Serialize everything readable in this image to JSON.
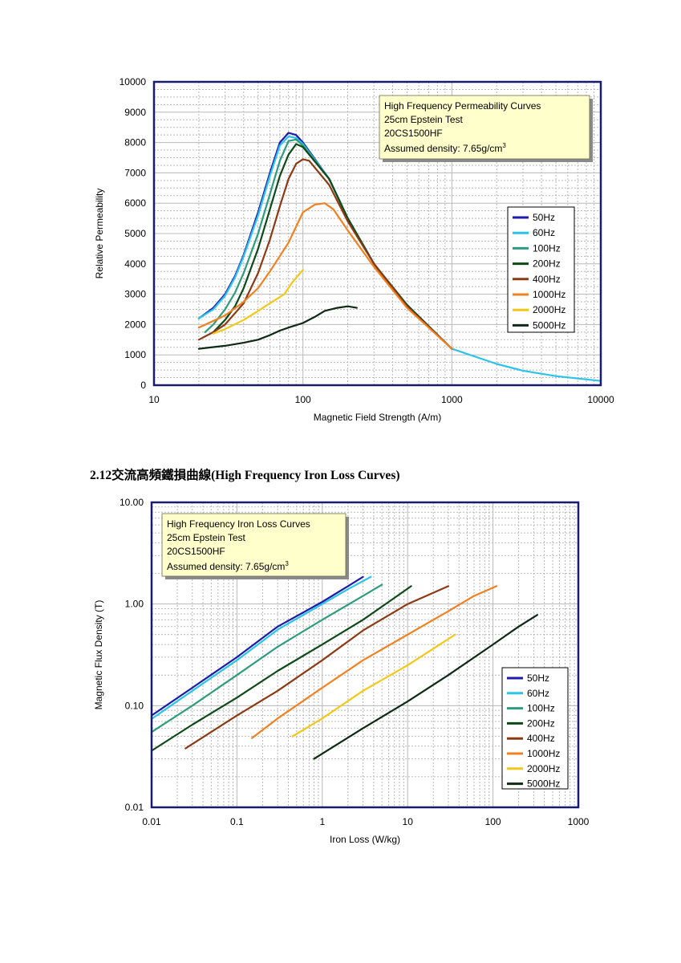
{
  "section_heading": "2.12交流高頻鐵損曲線(High Frequency Iron Loss Curves)",
  "colors": {
    "50Hz": "#1c1ca8",
    "60Hz": "#2ac4ea",
    "100Hz": "#2e9c7c",
    "200Hz": "#0e4a18",
    "400Hz": "#8c3a14",
    "1000Hz": "#f08020",
    "2000Hz": "#f2c818",
    "5000Hz": "#0e2a14",
    "frame": "#1a1a6e",
    "info_box": "#ffffcc",
    "grid": "#b8b8b8"
  },
  "chart_data": [
    {
      "type": "line",
      "xscale": "log",
      "xlim": [
        10,
        10000
      ],
      "ylim": [
        0,
        10000
      ],
      "xlabel": "Magnetic Field Strength (A/m)",
      "ylabel": "Relative Permeability",
      "x_ticks": [
        "10",
        "100",
        "1000",
        "10000"
      ],
      "y_ticks": [
        "0",
        "1000",
        "2000",
        "3000",
        "4000",
        "5000",
        "6000",
        "7000",
        "8000",
        "9000",
        "10000"
      ],
      "grid": true,
      "legend_position": "right",
      "info_box": {
        "line1": "High Frequency Permeability Curves",
        "line2": "25cm Epstein Test",
        "line3": "20CS1500HF",
        "line4": "Assumed density: 7.65g/cm",
        "line4_sup": "3"
      },
      "series": [
        {
          "name": "50Hz",
          "points": [
            [
              20,
              2200
            ],
            [
              25,
              2550
            ],
            [
              30,
              3000
            ],
            [
              35,
              3600
            ],
            [
              40,
              4300
            ],
            [
              50,
              5700
            ],
            [
              60,
              7000
            ],
            [
              70,
              8000
            ],
            [
              80,
              8320
            ],
            [
              90,
              8250
            ],
            [
              100,
              8000
            ],
            [
              150,
              6800
            ],
            [
              200,
              5500
            ],
            [
              300,
              4000
            ],
            [
              500,
              2600
            ],
            [
              1000,
              1200
            ]
          ]
        },
        {
          "name": "60Hz",
          "points": [
            [
              20,
              2200
            ],
            [
              25,
              2500
            ],
            [
              30,
              2950
            ],
            [
              35,
              3550
            ],
            [
              40,
              4250
            ],
            [
              50,
              5600
            ],
            [
              60,
              6900
            ],
            [
              70,
              7900
            ],
            [
              80,
              8200
            ],
            [
              90,
              8150
            ],
            [
              100,
              7950
            ],
            [
              150,
              6800
            ],
            [
              200,
              5500
            ],
            [
              300,
              4000
            ],
            [
              500,
              2600
            ],
            [
              1000,
              1200
            ],
            [
              2000,
              700
            ],
            [
              3000,
              480
            ],
            [
              5000,
              300
            ],
            [
              10000,
              140
            ]
          ]
        },
        {
          "name": "100Hz",
          "points": [
            [
              22,
              1750
            ],
            [
              25,
              2000
            ],
            [
              30,
              2500
            ],
            [
              35,
              3050
            ],
            [
              40,
              3700
            ],
            [
              50,
              5000
            ],
            [
              60,
              6300
            ],
            [
              70,
              7400
            ],
            [
              80,
              8050
            ],
            [
              90,
              8100
            ],
            [
              100,
              7900
            ],
            [
              150,
              6800
            ],
            [
              200,
              5500
            ],
            [
              300,
              4000
            ],
            [
              500,
              2600
            ],
            [
              1000,
              1200
            ]
          ]
        },
        {
          "name": "200Hz",
          "points": [
            [
              25,
              1750
            ],
            [
              30,
              2150
            ],
            [
              35,
              2600
            ],
            [
              40,
              3200
            ],
            [
              50,
              4500
            ],
            [
              60,
              5800
            ],
            [
              70,
              6900
            ],
            [
              80,
              7600
            ],
            [
              90,
              7950
            ],
            [
              100,
              7850
            ],
            [
              150,
              6800
            ],
            [
              200,
              5500
            ],
            [
              300,
              4000
            ],
            [
              500,
              2650
            ],
            [
              1000,
              1200
            ]
          ]
        },
        {
          "name": "400Hz",
          "points": [
            [
              20,
              1500
            ],
            [
              25,
              1750
            ],
            [
              30,
              2000
            ],
            [
              40,
              2700
            ],
            [
              50,
              3700
            ],
            [
              60,
              4800
            ],
            [
              70,
              5900
            ],
            [
              80,
              6800
            ],
            [
              90,
              7300
            ],
            [
              100,
              7450
            ],
            [
              110,
              7400
            ],
            [
              150,
              6600
            ],
            [
              200,
              5400
            ],
            [
              300,
              4000
            ],
            [
              500,
              2600
            ],
            [
              1000,
              1200
            ]
          ]
        },
        {
          "name": "1000Hz",
          "points": [
            [
              20,
              1900
            ],
            [
              30,
              2300
            ],
            [
              40,
              2750
            ],
            [
              50,
              3200
            ],
            [
              60,
              3750
            ],
            [
              80,
              4700
            ],
            [
              100,
              5700
            ],
            [
              120,
              5950
            ],
            [
              140,
              6000
            ],
            [
              160,
              5800
            ],
            [
              200,
              5100
            ],
            [
              300,
              3900
            ],
            [
              500,
              2550
            ],
            [
              1000,
              1200
            ]
          ]
        },
        {
          "name": "2000Hz",
          "points": [
            [
              25,
              1700
            ],
            [
              30,
              1850
            ],
            [
              40,
              2150
            ],
            [
              50,
              2450
            ],
            [
              60,
              2700
            ],
            [
              75,
              3000
            ],
            [
              85,
              3400
            ],
            [
              100,
              3800
            ]
          ]
        },
        {
          "name": "5000Hz",
          "points": [
            [
              20,
              1200
            ],
            [
              30,
              1300
            ],
            [
              40,
              1400
            ],
            [
              50,
              1500
            ],
            [
              60,
              1650
            ],
            [
              70,
              1800
            ],
            [
              80,
              1900
            ],
            [
              100,
              2050
            ],
            [
              120,
              2250
            ],
            [
              140,
              2450
            ],
            [
              170,
              2550
            ],
            [
              200,
              2600
            ],
            [
              230,
              2550
            ]
          ]
        }
      ]
    },
    {
      "type": "line",
      "xscale": "log",
      "yscale": "log",
      "xlim": [
        0.01,
        1000
      ],
      "ylim": [
        0.01,
        10
      ],
      "xlabel": "Iron Loss (W/kg)",
      "ylabel": "Magnetic Flux Density (T)",
      "x_ticks": [
        "0.01",
        "0.1",
        "1",
        "10",
        "100",
        "1000"
      ],
      "y_ticks": [
        "0.01",
        "0.10",
        "1.00",
        "10.00"
      ],
      "grid": true,
      "legend_position": "bottom-right",
      "info_box": {
        "line1": "High Frequency Iron Loss Curves",
        "line2": "25cm Epstein Test",
        "line3": "20CS1500HF",
        "line4": "Assumed density: 7.65g/cm",
        "line4_sup": "3"
      },
      "series": [
        {
          "name": "50Hz",
          "points": [
            [
              0.01,
              0.08
            ],
            [
              0.03,
              0.15
            ],
            [
              0.1,
              0.3
            ],
            [
              0.3,
              0.6
            ],
            [
              1,
              1.05
            ],
            [
              2,
              1.5
            ],
            [
              3,
              1.85
            ]
          ]
        },
        {
          "name": "60Hz",
          "points": [
            [
              0.01,
              0.074
            ],
            [
              0.03,
              0.14
            ],
            [
              0.1,
              0.28
            ],
            [
              0.3,
              0.56
            ],
            [
              1,
              1.0
            ],
            [
              2,
              1.4
            ],
            [
              3.7,
              1.85
            ]
          ]
        },
        {
          "name": "100Hz",
          "points": [
            [
              0.01,
              0.055
            ],
            [
              0.03,
              0.1
            ],
            [
              0.1,
              0.2
            ],
            [
              0.3,
              0.38
            ],
            [
              1,
              0.7
            ],
            [
              3,
              1.2
            ],
            [
              5,
              1.55
            ]
          ]
        },
        {
          "name": "200Hz",
          "points": [
            [
              0.01,
              0.036
            ],
            [
              0.03,
              0.065
            ],
            [
              0.1,
              0.12
            ],
            [
              0.3,
              0.22
            ],
            [
              1,
              0.4
            ],
            [
              3,
              0.7
            ],
            [
              6,
              1.05
            ],
            [
              11,
              1.5
            ]
          ]
        },
        {
          "name": "400Hz",
          "points": [
            [
              0.025,
              0.038
            ],
            [
              0.1,
              0.08
            ],
            [
              0.3,
              0.14
            ],
            [
              1,
              0.28
            ],
            [
              3,
              0.55
            ],
            [
              10,
              1.0
            ],
            [
              30,
              1.5
            ]
          ]
        },
        {
          "name": "1000Hz",
          "points": [
            [
              0.15,
              0.048
            ],
            [
              0.3,
              0.075
            ],
            [
              1,
              0.15
            ],
            [
              3,
              0.28
            ],
            [
              10,
              0.5
            ],
            [
              30,
              0.85
            ],
            [
              60,
              1.2
            ],
            [
              110,
              1.5
            ]
          ]
        },
        {
          "name": "2000Hz",
          "points": [
            [
              0.45,
              0.05
            ],
            [
              1,
              0.075
            ],
            [
              3,
              0.14
            ],
            [
              10,
              0.25
            ],
            [
              36,
              0.5
            ]
          ]
        },
        {
          "name": "5000Hz",
          "points": [
            [
              0.8,
              0.03
            ],
            [
              3,
              0.06
            ],
            [
              10,
              0.11
            ],
            [
              30,
              0.2
            ],
            [
              100,
              0.4
            ],
            [
              200,
              0.6
            ],
            [
              330,
              0.78
            ]
          ]
        }
      ]
    }
  ]
}
